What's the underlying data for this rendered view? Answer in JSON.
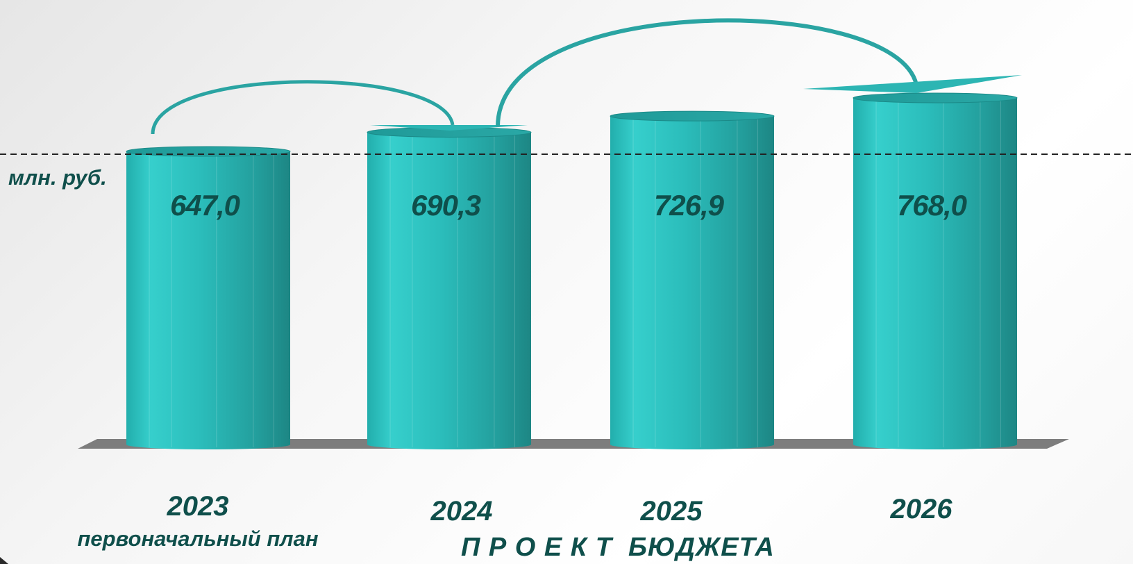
{
  "chart_data": {
    "type": "bar",
    "categories": [
      "2023",
      "2024",
      "2025",
      "2026"
    ],
    "values": [
      647.0,
      690.3,
      726.9,
      768.0
    ],
    "value_labels": [
      "647,0",
      "690,3",
      "726,9",
      "768,0"
    ],
    "unit": "млн. руб.",
    "subtitle_first": "первоначальный план",
    "project_label": "П Р О Е К Т  БЮДЖЕТА",
    "ylim": [
      0,
      768.0
    ],
    "bar_color": "#2cb5b3",
    "text_color": "#0f4f4b",
    "reference_line": "dashed"
  }
}
